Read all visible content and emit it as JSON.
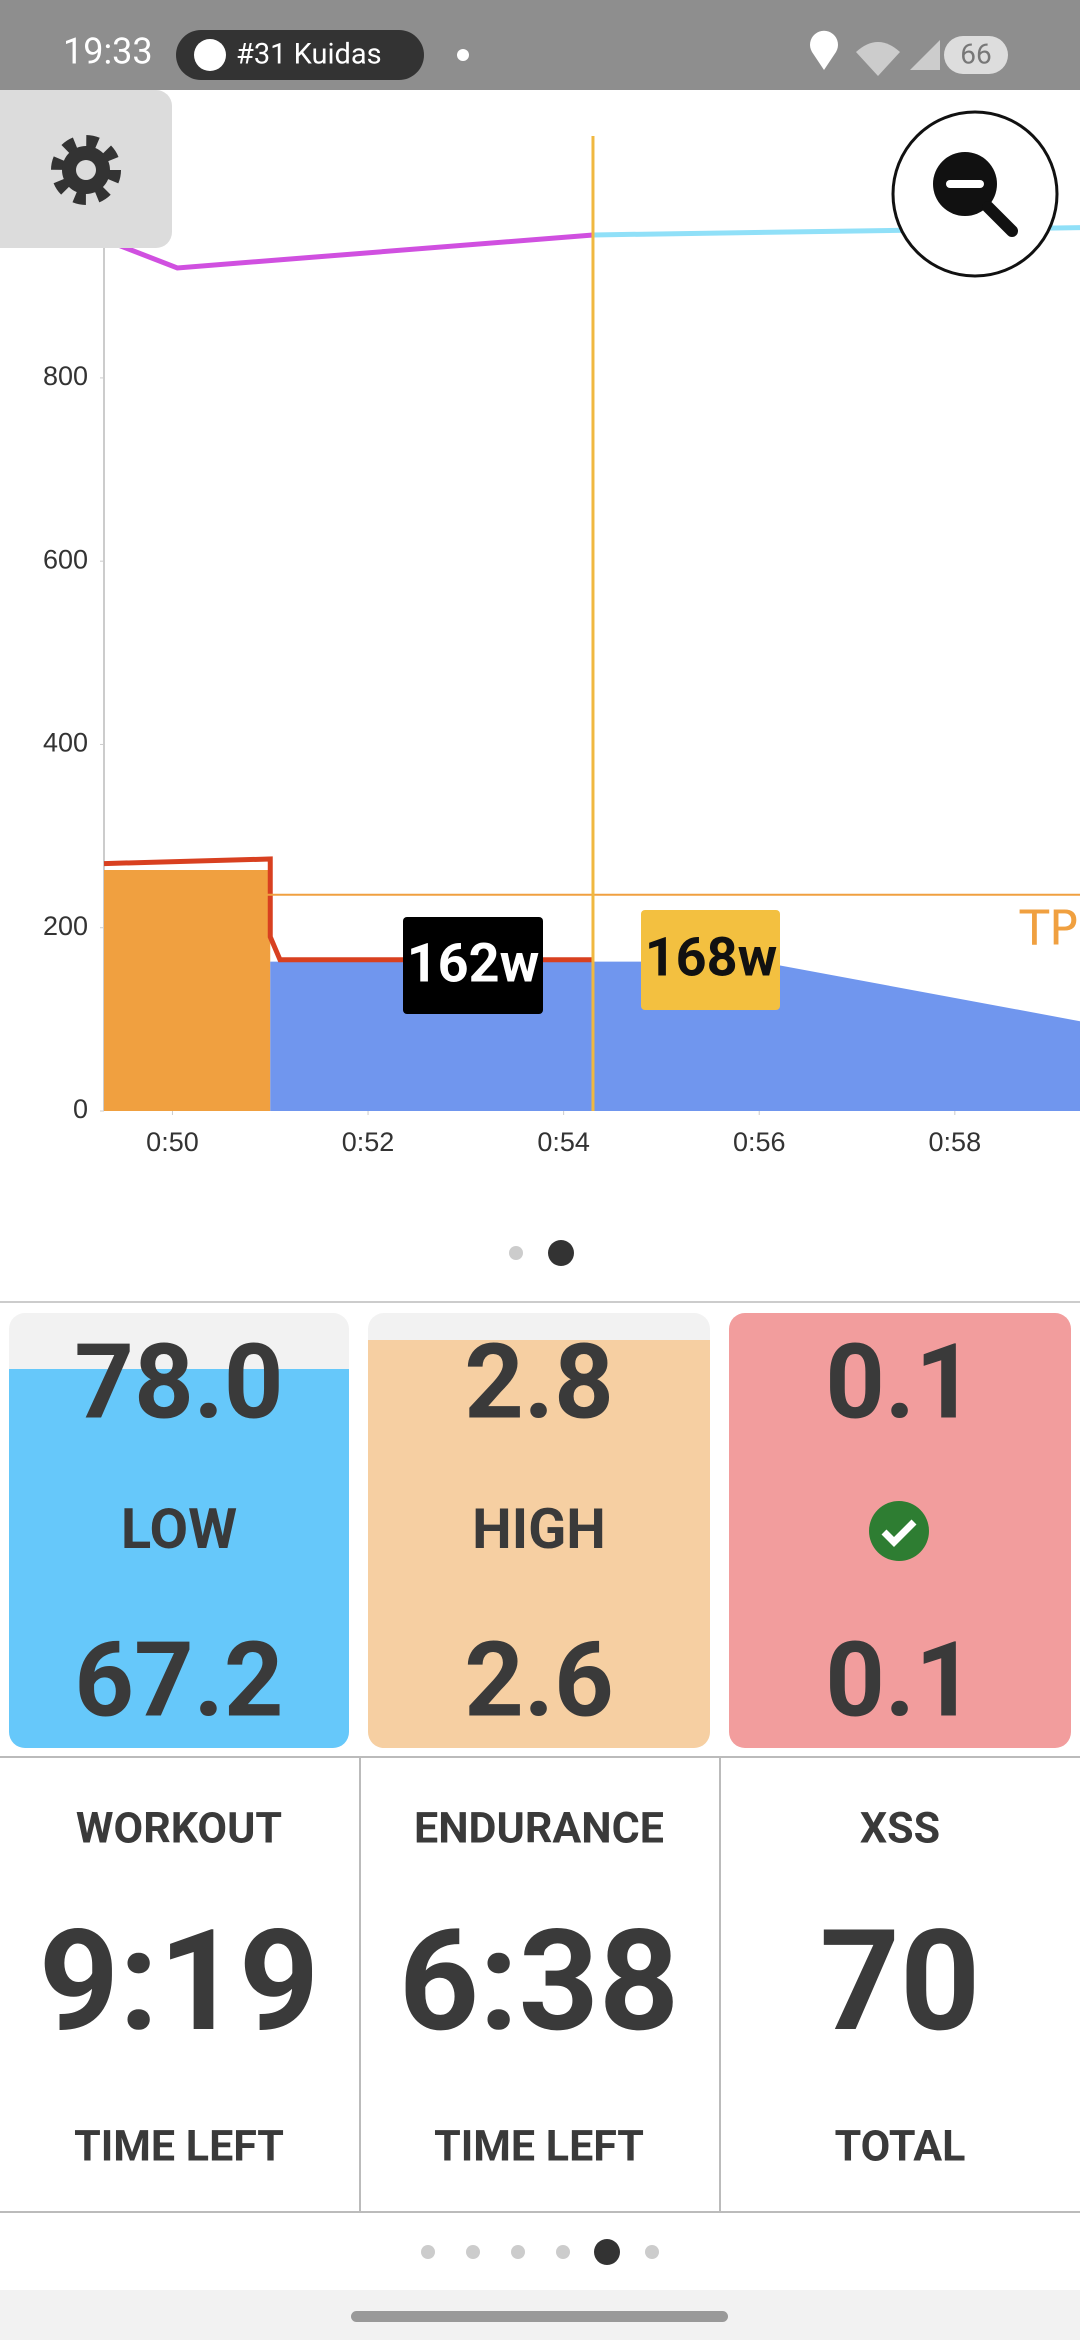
{
  "status_bar": {
    "time": "19:33",
    "media": "#31 Kuidas",
    "battery": "66"
  },
  "chart_data": {
    "type": "line",
    "xlim": [
      49.3,
      59.28
    ],
    "ylim": [
      0,
      1100
    ],
    "xticks": [
      {
        "value": 50,
        "label": "0:50"
      },
      {
        "value": 52,
        "label": "0:52"
      },
      {
        "value": 54,
        "label": "0:54"
      },
      {
        "value": 56,
        "label": "0:56"
      },
      {
        "value": 58,
        "label": "0:58"
      }
    ],
    "yticks": [
      0,
      200,
      400,
      600,
      800
    ],
    "series": [
      {
        "type": "area",
        "color": "#f0a040",
        "x": [
          49.3,
          51.0
        ],
        "values": [
          263,
          263
        ]
      },
      {
        "type": "area",
        "color": "#7096ee",
        "x": [
          51.0,
          56.0,
          59.28
        ],
        "values": [
          163,
          163,
          98
        ]
      },
      {
        "type": "line",
        "color": "#d84020",
        "x": [
          49.3,
          51.0,
          51.0,
          51.1,
          54.3
        ],
        "values": [
          270,
          275,
          190,
          165,
          165
        ]
      },
      {
        "type": "line",
        "color": "#d050e0",
        "x": [
          49.3,
          50.05,
          54.3
        ],
        "values": [
          951,
          920,
          956
        ]
      },
      {
        "type": "line",
        "color": "#90e0f8",
        "x": [
          54.3,
          59.28
        ],
        "values": [
          956,
          964
        ]
      }
    ],
    "threshold": {
      "value": 236,
      "label": "TP",
      "color": "#f0a040"
    },
    "cursor": {
      "x": 54.3,
      "color": "#f0b840"
    },
    "cursor_labels": [
      "162w",
      "168w"
    ]
  },
  "metrics": [
    {
      "top": "78.0",
      "label": "LOW",
      "bottom": "67.2"
    },
    {
      "top": "2.8",
      "label": "HIGH",
      "bottom": "2.6"
    },
    {
      "top": "0.1",
      "bottom": "0.1"
    }
  ],
  "stats": [
    {
      "title": "WORKOUT",
      "value": "9:19",
      "caption": "TIME LEFT"
    },
    {
      "title": "ENDURANCE",
      "value": "6:38",
      "caption": "TIME LEFT"
    },
    {
      "title": "XSS",
      "value": "70",
      "caption": "TOTAL"
    }
  ]
}
